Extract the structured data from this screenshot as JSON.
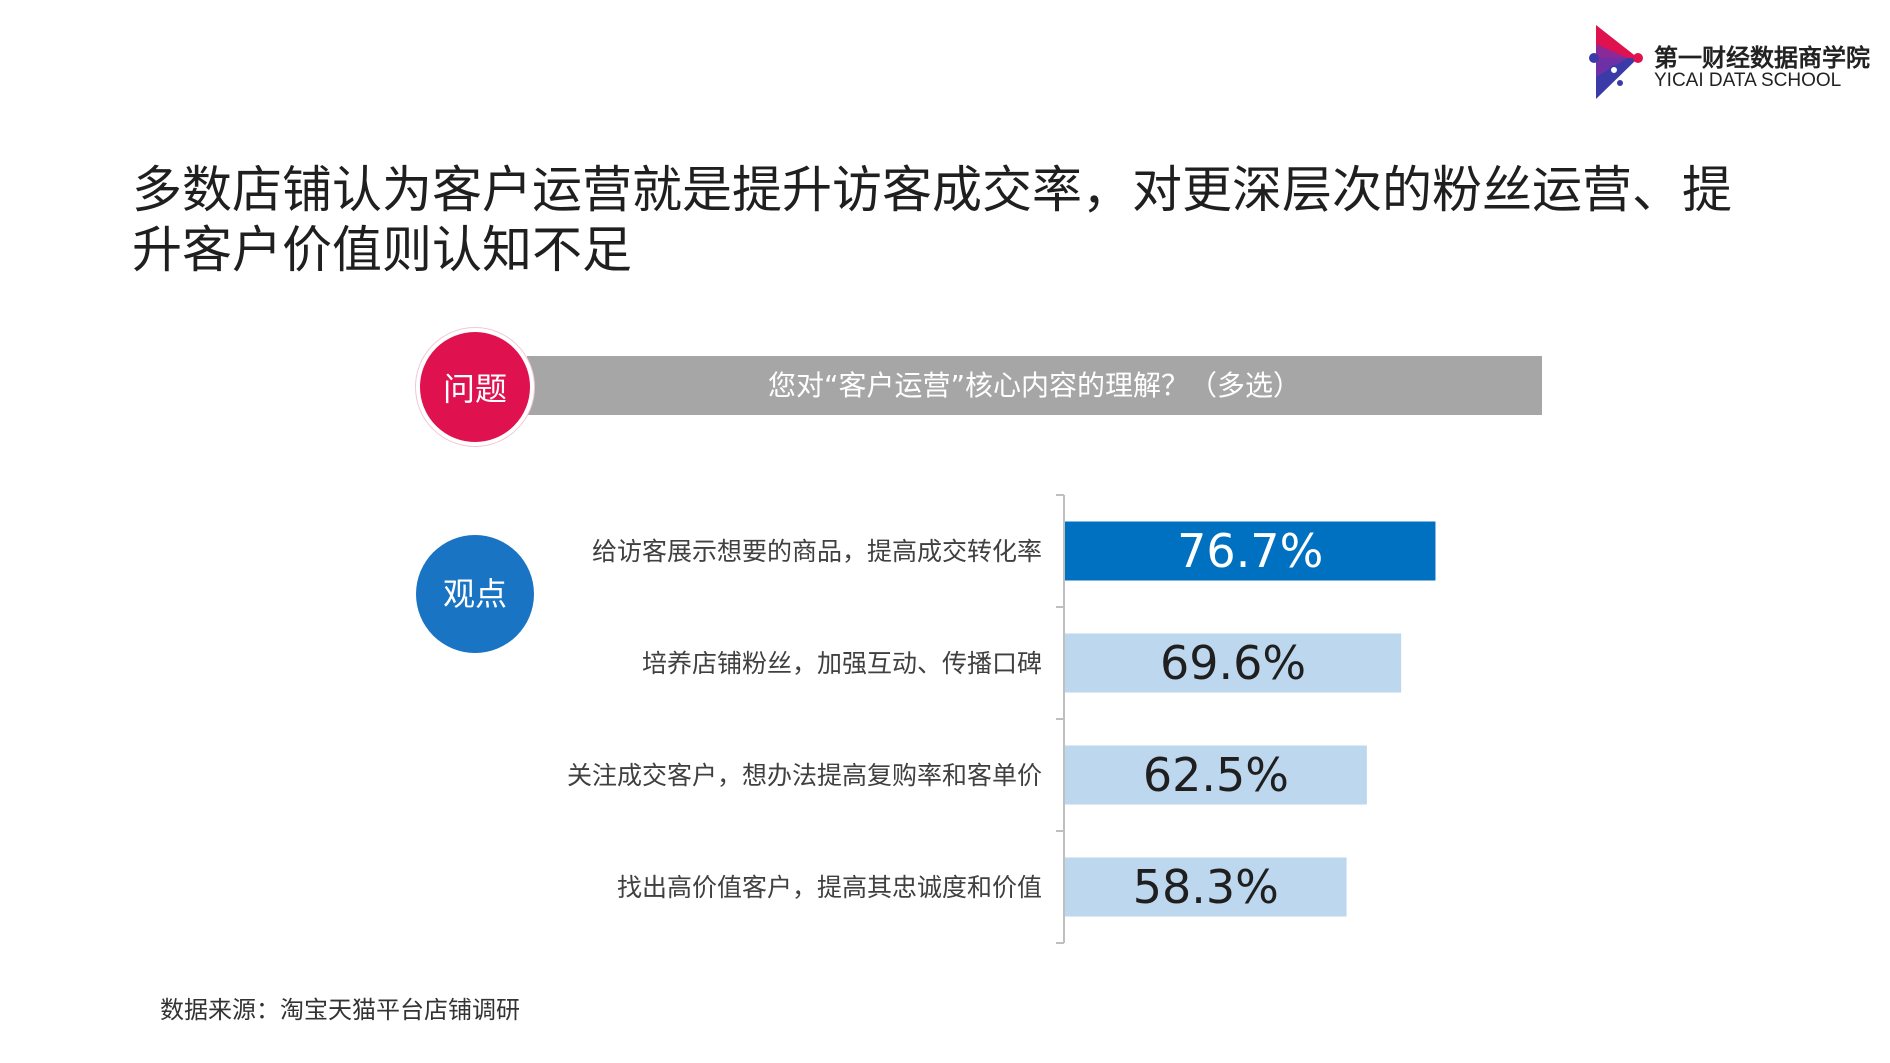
{
  "logo": {
    "name_cn": "第一财经数据商学院",
    "name_en": "YICAI DATA SCHOOL"
  },
  "headline": "多数店铺认为客户运营就是提升访客成交率，对更深层次的粉丝运营、提升客户价值则认知不足",
  "question": {
    "badge": "问题",
    "text": "您对“客户运营”核心内容的理解？（多选）"
  },
  "viewpoint_badge": "观点",
  "colors": {
    "highlight_bar": "#0070c0",
    "normal_bar": "#bdd7ee",
    "highlight_text": "#ffffff",
    "normal_text": "#1f1f1f"
  },
  "chart_data": {
    "type": "bar",
    "orientation": "horizontal",
    "categories": [
      "给访客展示想要的商品，提高成交转化率",
      "培养店铺粉丝，加强互动、传播口碑",
      "关注成交客户，想办法提高复购率和客单价",
      "找出高价值客户，提高其忠诚度和价值"
    ],
    "values": [
      76.7,
      69.6,
      62.5,
      58.3
    ],
    "labels": [
      "76.7%",
      "69.6%",
      "62.5%",
      "58.3%"
    ],
    "highlight_index": 0,
    "unit": "%",
    "xlim": [
      0,
      100
    ]
  },
  "source": "数据来源：淘宝天猫平台店铺调研"
}
